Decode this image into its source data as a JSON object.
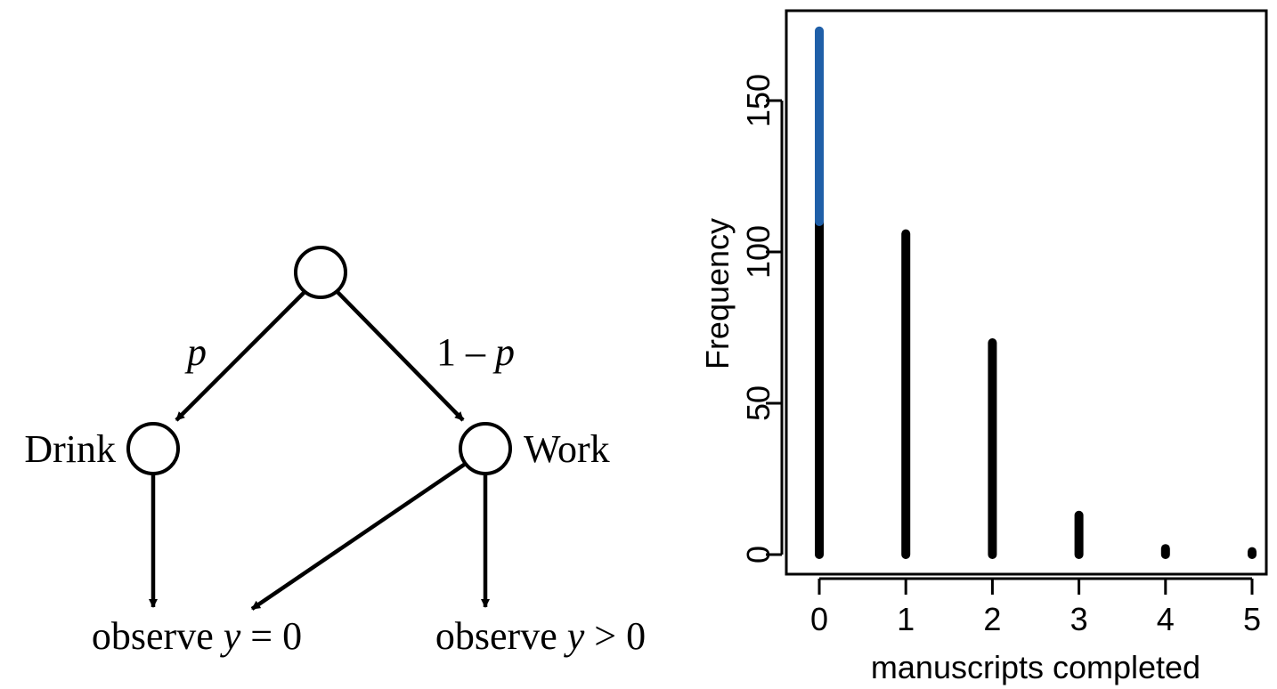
{
  "diagram": {
    "edge_left_label": "p",
    "edge_right_prefix": "1 – ",
    "edge_right_var": "p",
    "drink_label": "Drink",
    "work_label": "Work",
    "outcome_zero_prefix": "observe ",
    "outcome_zero_var": "y",
    "outcome_zero_suffix": " = 0",
    "outcome_pos_prefix": "observe ",
    "outcome_pos_var": "y",
    "outcome_pos_suffix": " > 0"
  },
  "chart_data": {
    "type": "bar",
    "xlabel": "manuscripts completed",
    "ylabel": "Frequency",
    "categories": [
      "0",
      "1",
      "2",
      "3",
      "4",
      "5"
    ],
    "x": [
      0,
      1,
      2,
      3,
      4,
      5
    ],
    "series": [
      {
        "values": [
          110,
          106,
          70,
          13,
          2,
          1
        ],
        "color": "#000000"
      },
      {
        "values": [
          63,
          0,
          0,
          0,
          0,
          0
        ],
        "color": "#1f5fa8"
      }
    ],
    "stacked": true,
    "totals": [
      173,
      106,
      70,
      13,
      2,
      1
    ],
    "xlim": [
      -0.3,
      5.3
    ],
    "ylim": [
      0,
      180
    ],
    "yticks": [
      0,
      50,
      100,
      150
    ],
    "ytick_labels": [
      "0",
      "50",
      "100",
      "150"
    ],
    "grid": false,
    "legend": "none"
  }
}
